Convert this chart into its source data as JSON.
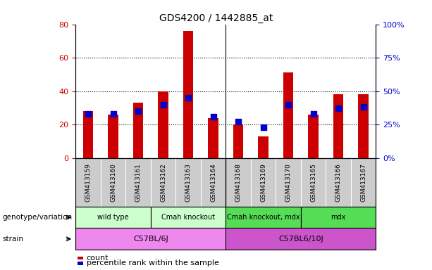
{
  "title": "GDS4200 / 1442885_at",
  "samples": [
    "GSM413159",
    "GSM413160",
    "GSM413161",
    "GSM413162",
    "GSM413163",
    "GSM413164",
    "GSM413168",
    "GSM413169",
    "GSM413170",
    "GSM413165",
    "GSM413166",
    "GSM413167"
  ],
  "counts": [
    28,
    26,
    33,
    40,
    76,
    24,
    20,
    13,
    51,
    26,
    38,
    38
  ],
  "percentiles": [
    33,
    33,
    35,
    40,
    45,
    31,
    27,
    23,
    40,
    33,
    37,
    38
  ],
  "bar_color": "#cc0000",
  "dot_color": "#0000cc",
  "ylim_left": [
    0,
    80
  ],
  "ylim_right": [
    0,
    100
  ],
  "yticks_left": [
    0,
    20,
    40,
    60,
    80
  ],
  "ytick_labels_right": [
    "0%",
    "25%",
    "50%",
    "75%",
    "100%"
  ],
  "genotype_groups": [
    {
      "label": "wild type",
      "start": 0,
      "end": 3,
      "color": "#ccffcc"
    },
    {
      "label": "Cmah knockout",
      "start": 3,
      "end": 6,
      "color": "#ccffcc"
    },
    {
      "label": "Cmah knockout, mdx",
      "start": 6,
      "end": 9,
      "color": "#55dd55"
    },
    {
      "label": "mdx",
      "start": 9,
      "end": 12,
      "color": "#55dd55"
    }
  ],
  "strain_groups": [
    {
      "label": "C57BL/6J",
      "start": 0,
      "end": 6,
      "color": "#ee88ee"
    },
    {
      "label": "C57BL6/10J",
      "start": 6,
      "end": 12,
      "color": "#cc55cc"
    }
  ],
  "legend_count_color": "#cc0000",
  "legend_dot_color": "#0000cc",
  "legend_count_label": "count",
  "legend_percentile_label": "percentile rank within the sample",
  "bar_width": 0.4,
  "dot_size": 30,
  "grid_style": "dotted",
  "row_label_genotype": "genotype/variation",
  "row_label_strain": "strain",
  "tick_label_color_left": "#cc0000",
  "tick_label_color_right": "#0000cc",
  "xtick_bg_color": "#cccccc",
  "separator_after": 5
}
